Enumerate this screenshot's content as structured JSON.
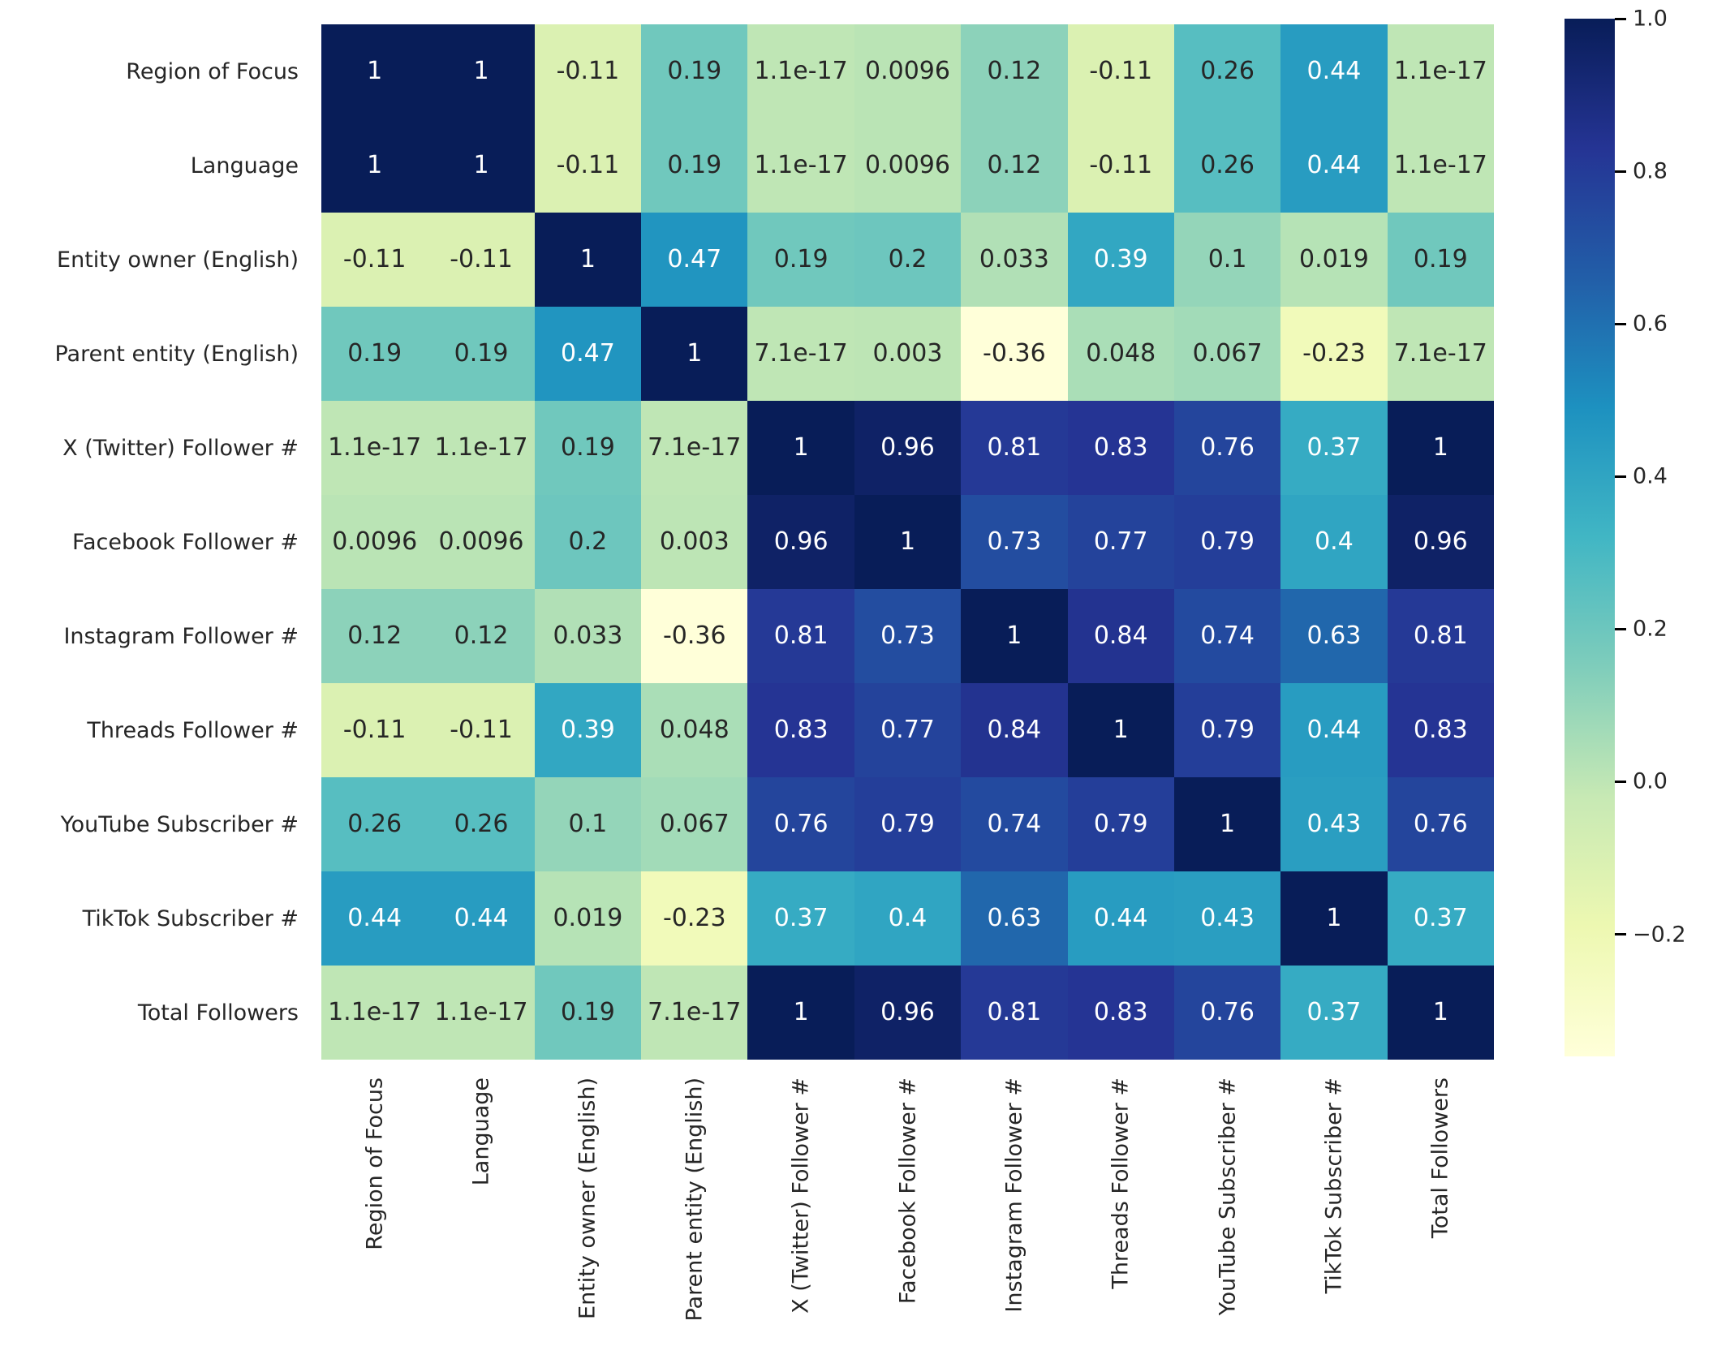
{
  "chart_data": {
    "type": "heatmap",
    "title": "",
    "categories": [
      "Region of Focus",
      "Language",
      "Entity owner (English)",
      "Parent entity (English)",
      "X (Twitter) Follower #",
      "Facebook Follower #",
      "Instagram Follower #",
      "Threads Follower #",
      "YouTube Subscriber #",
      "TikTok Subscriber #",
      "Total Followers"
    ],
    "matrix": [
      [
        1,
        1,
        -0.11,
        0.19,
        1.1e-17,
        0.0096,
        0.12,
        -0.11,
        0.26,
        0.44,
        1.1e-17
      ],
      [
        1,
        1,
        -0.11,
        0.19,
        1.1e-17,
        0.0096,
        0.12,
        -0.11,
        0.26,
        0.44,
        1.1e-17
      ],
      [
        -0.11,
        -0.11,
        1,
        0.47,
        0.19,
        0.2,
        0.033,
        0.39,
        0.1,
        0.019,
        0.19
      ],
      [
        0.19,
        0.19,
        0.47,
        1,
        7.1e-17,
        0.003,
        -0.36,
        0.048,
        0.067,
        -0.23,
        7.1e-17
      ],
      [
        1.1e-17,
        1.1e-17,
        0.19,
        7.1e-17,
        1,
        0.96,
        0.81,
        0.83,
        0.76,
        0.37,
        1
      ],
      [
        0.0096,
        0.0096,
        0.2,
        0.003,
        0.96,
        1,
        0.73,
        0.77,
        0.79,
        0.4,
        0.96
      ],
      [
        0.12,
        0.12,
        0.033,
        -0.36,
        0.81,
        0.73,
        1,
        0.84,
        0.74,
        0.63,
        0.81
      ],
      [
        -0.11,
        -0.11,
        0.39,
        0.048,
        0.83,
        0.77,
        0.84,
        1,
        0.79,
        0.44,
        0.83
      ],
      [
        0.26,
        0.26,
        0.1,
        0.067,
        0.76,
        0.79,
        0.74,
        0.79,
        1,
        0.43,
        0.76
      ],
      [
        0.44,
        0.44,
        0.019,
        -0.23,
        0.37,
        0.4,
        0.63,
        0.44,
        0.43,
        1,
        0.37
      ],
      [
        1.1e-17,
        1.1e-17,
        0.19,
        7.1e-17,
        1,
        0.96,
        0.81,
        0.83,
        0.76,
        0.37,
        1
      ]
    ],
    "annotation_format": "2 significant digits",
    "colormap": "YlGnBu",
    "colormap_stops": [
      "#ffffd9",
      "#edf8b1",
      "#c7e9b4",
      "#7fcdbb",
      "#41b6c4",
      "#1d91c0",
      "#225ea8",
      "#253494",
      "#081d58"
    ],
    "vmin": -0.36,
    "vmax": 1.0,
    "grid_on": false,
    "legend_position": "none",
    "text_colors": {
      "dark": "#262626",
      "light": "#ffffff"
    },
    "colorbar": {
      "orientation": "vertical",
      "tick_labels": [
        "1.0",
        "0.8",
        "0.6",
        "0.4",
        "0.2",
        "0.0",
        "−0.2"
      ],
      "tick_values": [
        1.0,
        0.8,
        0.6,
        0.4,
        0.2,
        0.0,
        -0.2
      ]
    }
  }
}
